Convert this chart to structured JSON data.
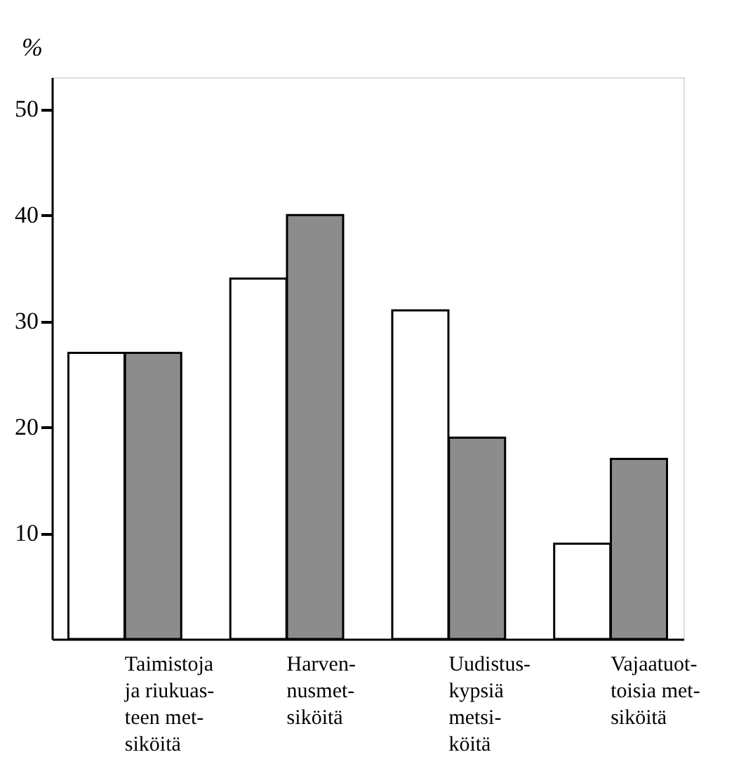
{
  "chart_data": {
    "type": "bar",
    "ylabel": "%",
    "categories": [
      "Taimistoja\nja riukuas-\nteen met-\nsiköitä",
      "Harven-\nnusmet-\nsiköitä",
      "Uudistus-\nkypsiä\nmetsi-\nköitä",
      "Vajaatuot-\ntoisia met-\nsiköitä"
    ],
    "series": [
      {
        "color": "#ffffff",
        "values": [
          27,
          34,
          31,
          9
        ]
      },
      {
        "color": "#8c8c8c",
        "values": [
          27,
          40,
          19,
          17
        ]
      }
    ],
    "ylim": [
      0,
      53
    ],
    "yticks": [
      10,
      20,
      30,
      40,
      50
    ],
    "grid": false,
    "legend": false
  }
}
